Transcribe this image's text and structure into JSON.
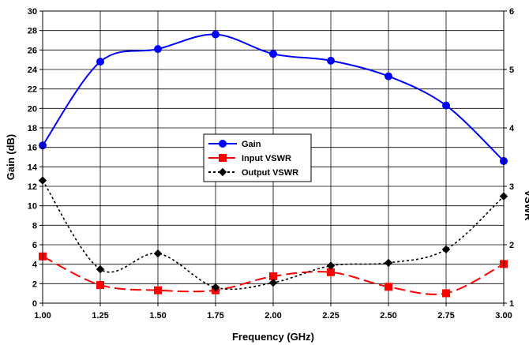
{
  "chart_data": {
    "type": "line",
    "x": [
      1.0,
      1.25,
      1.5,
      1.75,
      2.0,
      2.25,
      2.5,
      2.75,
      3.0
    ],
    "xticks": [
      "1.00",
      "1.25",
      "1.50",
      "1.75",
      "2.00",
      "2.25",
      "2.50",
      "2.75",
      "3.00"
    ],
    "xlim": [
      1.0,
      3.0
    ],
    "xlabel": "Frequency (GHz)",
    "ylabel": "Gain (dB)",
    "ylabel_right": "VSWR",
    "ylim": [
      0,
      30
    ],
    "yticks": [
      "0",
      "2",
      "4",
      "6",
      "8",
      "10",
      "12",
      "14",
      "16",
      "18",
      "20",
      "22",
      "24",
      "26",
      "28",
      "30"
    ],
    "ylim_right": [
      1,
      6
    ],
    "yticks_right": [
      "1",
      "2",
      "3",
      "4",
      "5",
      "6"
    ],
    "grid": true,
    "legend_position": "center",
    "series": [
      {
        "name": "Gain",
        "axis": "left",
        "values": [
          16.2,
          24.8,
          26.1,
          27.6,
          25.6,
          24.9,
          23.3,
          20.3,
          14.6
        ],
        "color": "#0000ff",
        "marker": "circle",
        "dash": "solid"
      },
      {
        "name": "Input VSWR",
        "axis": "right",
        "values": [
          1.8,
          1.31,
          1.22,
          1.22,
          1.46,
          1.53,
          1.28,
          1.17,
          1.67
        ],
        "color": "#ff0000",
        "marker": "square",
        "dash": "long-dash"
      },
      {
        "name": "Output VSWR",
        "axis": "right",
        "values": [
          3.1,
          1.58,
          1.85,
          1.27,
          1.35,
          1.64,
          1.69,
          1.92,
          2.83
        ],
        "color": "#000000",
        "marker": "diamond",
        "dash": "dotted"
      }
    ]
  }
}
